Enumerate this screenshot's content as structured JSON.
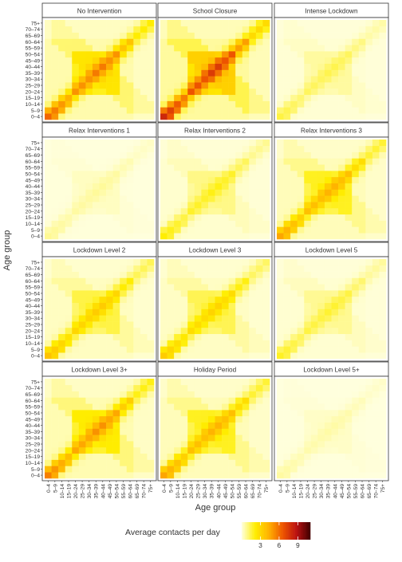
{
  "chart_data": {
    "type": "heatmap",
    "ylabel": "Age group",
    "xlabel": "Age group",
    "age_groups": [
      "0–4",
      "5–9",
      "10–14",
      "15–19",
      "20–24",
      "25–29",
      "30–34",
      "35–39",
      "40–44",
      "45–49",
      "50–54",
      "55–59",
      "60–64",
      "65–69",
      "70–74",
      "75+"
    ],
    "panels": [
      {
        "title": "No Intervention",
        "scale": 1.0
      },
      {
        "title": "School Closure",
        "scale": 1.3
      },
      {
        "title": "Intense Lockdown",
        "scale": 0.25
      },
      {
        "title": "Relax Interventions 1",
        "scale": 0.12
      },
      {
        "title": "Relax Interventions 2",
        "scale": 0.35
      },
      {
        "title": "Relax Interventions 3",
        "scale": 0.75
      },
      {
        "title": "Lockdown Level 2",
        "scale": 0.6
      },
      {
        "title": "Lockdown Level 3",
        "scale": 0.55
      },
      {
        "title": "Lockdown Level 5",
        "scale": 0.3
      },
      {
        "title": "Lockdown Level 3+",
        "scale": 0.9
      },
      {
        "title": "Holiday Period",
        "scale": 0.75
      },
      {
        "title": "Lockdown Level 5+",
        "scale": 0.1
      }
    ],
    "legend": {
      "title": "Average contacts per day",
      "ticks": [
        3,
        6,
        9
      ],
      "range": [
        0,
        11
      ],
      "colors": [
        "#ffffe0",
        "#ffee00",
        "#ffb000",
        "#ee5500",
        "#bb1111",
        "#400000"
      ]
    },
    "grid": false
  }
}
